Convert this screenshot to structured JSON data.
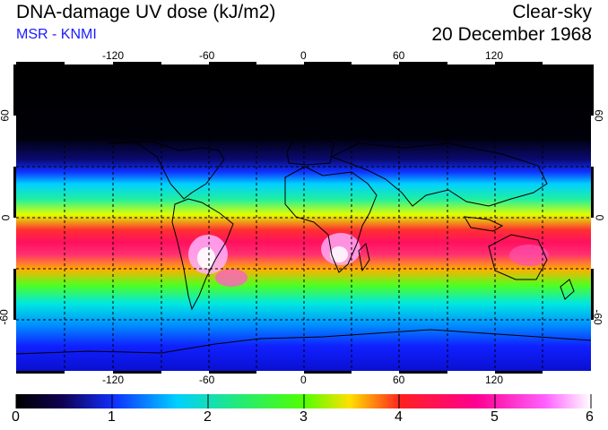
{
  "header": {
    "title": "DNA-damage UV dose (kJ/m2)",
    "source": "MSR - KNMI",
    "condition": "Clear-sky",
    "date": "20 December 1968"
  },
  "map": {
    "lon_ticks": [
      "-120",
      "-60",
      "0",
      "60",
      "120"
    ],
    "lat_ticks": [
      "60",
      "0",
      "-60"
    ]
  },
  "colorbar": {
    "labels": [
      "0",
      "1",
      "2",
      "3",
      "4",
      "5",
      "6"
    ],
    "min": 0,
    "max": 6
  }
}
